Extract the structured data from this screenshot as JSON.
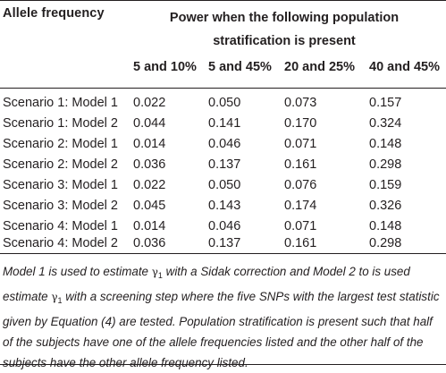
{
  "table": {
    "header": {
      "allele_frequency": "Allele frequency",
      "power_line1": "Power when the following population",
      "power_line2": "stratification is present",
      "columns": [
        "5 and 10%",
        "5 and 45%",
        "20 and 25%",
        "40 and 45%"
      ]
    },
    "rows": [
      {
        "label": "Scenario 1: Model 1",
        "values": [
          "0.022",
          "0.050",
          "0.073",
          "0.157"
        ]
      },
      {
        "label": "Scenario 1: Model 2",
        "values": [
          "0.044",
          "0.141",
          "0.170",
          "0.324"
        ]
      },
      {
        "label": "Scenario 2: Model 1",
        "values": [
          "0.014",
          "0.046",
          "0.071",
          "0.148"
        ]
      },
      {
        "label": "Scenario 2: Model 2",
        "values": [
          "0.036",
          "0.137",
          "0.161",
          "0.298"
        ]
      },
      {
        "label": "Scenario 3: Model 1",
        "values": [
          "0.022",
          "0.050",
          "0.076",
          "0.159"
        ]
      },
      {
        "label": "Scenario 3: Model 2",
        "values": [
          "0.045",
          "0.143",
          "0.174",
          "0.326"
        ]
      },
      {
        "label": "Scenario 4: Model 1",
        "values": [
          "0.014",
          "0.046",
          "0.071",
          "0.148"
        ]
      },
      {
        "label": "Scenario 4: Model 2",
        "values": [
          "0.036",
          "0.137",
          "0.161",
          "0.298"
        ]
      }
    ]
  },
  "footnote": {
    "part1": "Model 1 is used to estimate ",
    "gamma": "γ",
    "sub": "1",
    "part2": " with a Sidak correction and Model 2 to is used estimate ",
    "gamma2": "γ",
    "sub2": "1",
    "part3": " with a screening step where the five SNPs with the largest test statistic given by Equation (4) are tested. Population stratification is present such that half of the subjects have one of the allele frequencies listed and the other half of the subjects have the other allele frequency listed."
  }
}
